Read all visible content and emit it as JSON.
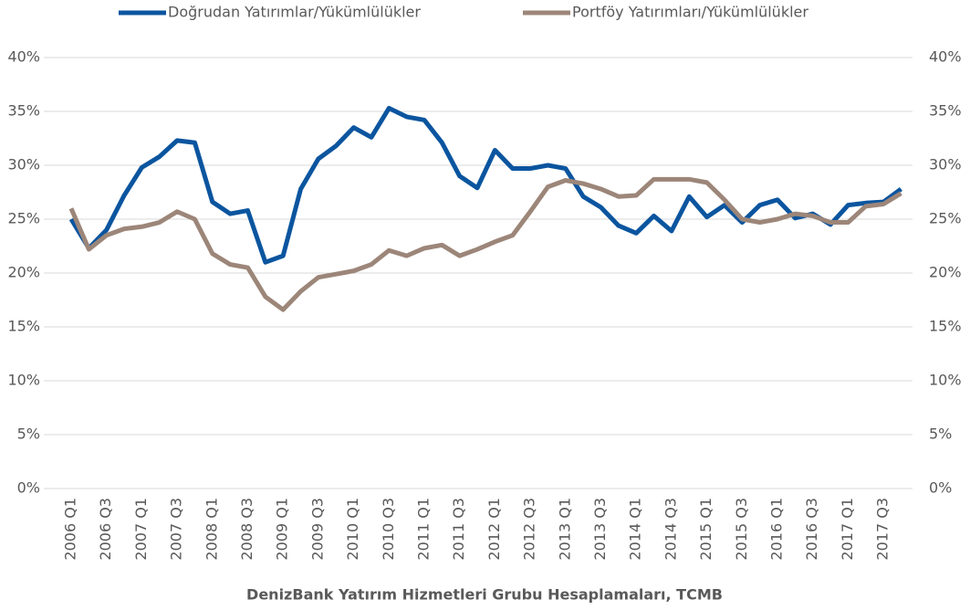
{
  "chart_data": {
    "type": "line",
    "source": "DenizBank Yatırım Hizmetleri Grubu Hesaplamaları, TCMB",
    "categories": [
      "2006 Q1",
      null,
      "2006 Q3",
      null,
      "2007 Q1",
      null,
      "2007 Q3",
      null,
      "2008 Q1",
      null,
      "2008 Q3",
      null,
      "2009 Q1",
      null,
      "2009 Q3",
      null,
      "2010 Q1",
      null,
      "2010 Q3",
      null,
      "2011 Q1",
      null,
      "2011 Q3",
      null,
      "2012 Q1",
      null,
      "2012 Q3",
      null,
      "2013 Q1",
      null,
      "2013 Q3",
      null,
      "2014 Q1",
      null,
      "2014 Q3",
      null,
      "2015 Q1",
      null,
      "2015 Q3",
      null,
      "2016 Q1",
      null,
      "2016 Q3",
      null,
      "2017 Q1",
      null,
      "2017 Q3",
      null
    ],
    "series": [
      {
        "name": "Doğrudan Yatırımlar/Yükümlülükler",
        "color": "#0b559f",
        "values": [
          25.0,
          22.3,
          24.0,
          27.2,
          29.8,
          30.8,
          32.3,
          32.1,
          26.6,
          25.5,
          25.8,
          21.0,
          21.6,
          27.8,
          30.6,
          31.8,
          33.5,
          32.6,
          35.3,
          34.5,
          34.2,
          32.1,
          29.0,
          27.9,
          31.4,
          29.7,
          29.7,
          30.0,
          29.7,
          27.1,
          26.1,
          24.4,
          23.7,
          25.3,
          23.9,
          27.1,
          25.2,
          26.3,
          24.7,
          26.3,
          26.8,
          25.1,
          25.5,
          24.5,
          26.3,
          26.5,
          26.6,
          27.8
        ]
      },
      {
        "name": "Portföy Yatırımları/Yükümlülükler",
        "color": "#9c8679",
        "values": [
          26.0,
          22.2,
          23.5,
          24.1,
          24.3,
          24.7,
          25.7,
          25.0,
          21.8,
          20.8,
          20.5,
          17.8,
          16.6,
          18.3,
          19.6,
          19.9,
          20.2,
          20.8,
          22.1,
          21.6,
          22.3,
          22.6,
          21.6,
          22.2,
          22.9,
          23.5,
          25.7,
          28.0,
          28.6,
          28.3,
          27.8,
          27.1,
          27.2,
          28.7,
          28.7,
          28.7,
          28.4,
          26.8,
          25.0,
          24.7,
          25.0,
          25.5,
          25.3,
          24.7,
          24.7,
          26.2,
          26.4,
          27.4
        ]
      }
    ],
    "ylim": [
      0,
      40
    ],
    "yticks": [
      {
        "value": 0,
        "label": "0%"
      },
      {
        "value": 5,
        "label": "5%"
      },
      {
        "value": 10,
        "label": "10%"
      },
      {
        "value": 15,
        "label": "15%"
      },
      {
        "value": 20,
        "label": "20%"
      },
      {
        "value": 25,
        "label": "25%"
      },
      {
        "value": 30,
        "label": "30%"
      },
      {
        "value": 35,
        "label": "35%"
      },
      {
        "value": 40,
        "label": "40%"
      }
    ],
    "y2lim": [
      0,
      40
    ],
    "y2ticks": [
      {
        "value": 0,
        "label": "0%"
      },
      {
        "value": 5,
        "label": "5%"
      },
      {
        "value": 10,
        "label": "10%"
      },
      {
        "value": 15,
        "label": "15%"
      },
      {
        "value": 20,
        "label": "20%"
      },
      {
        "value": 25,
        "label": "25%"
      },
      {
        "value": 30,
        "label": "30%"
      },
      {
        "value": 35,
        "label": "35%"
      },
      {
        "value": 40,
        "label": "40%"
      }
    ],
    "grid": true,
    "legend": "top"
  }
}
